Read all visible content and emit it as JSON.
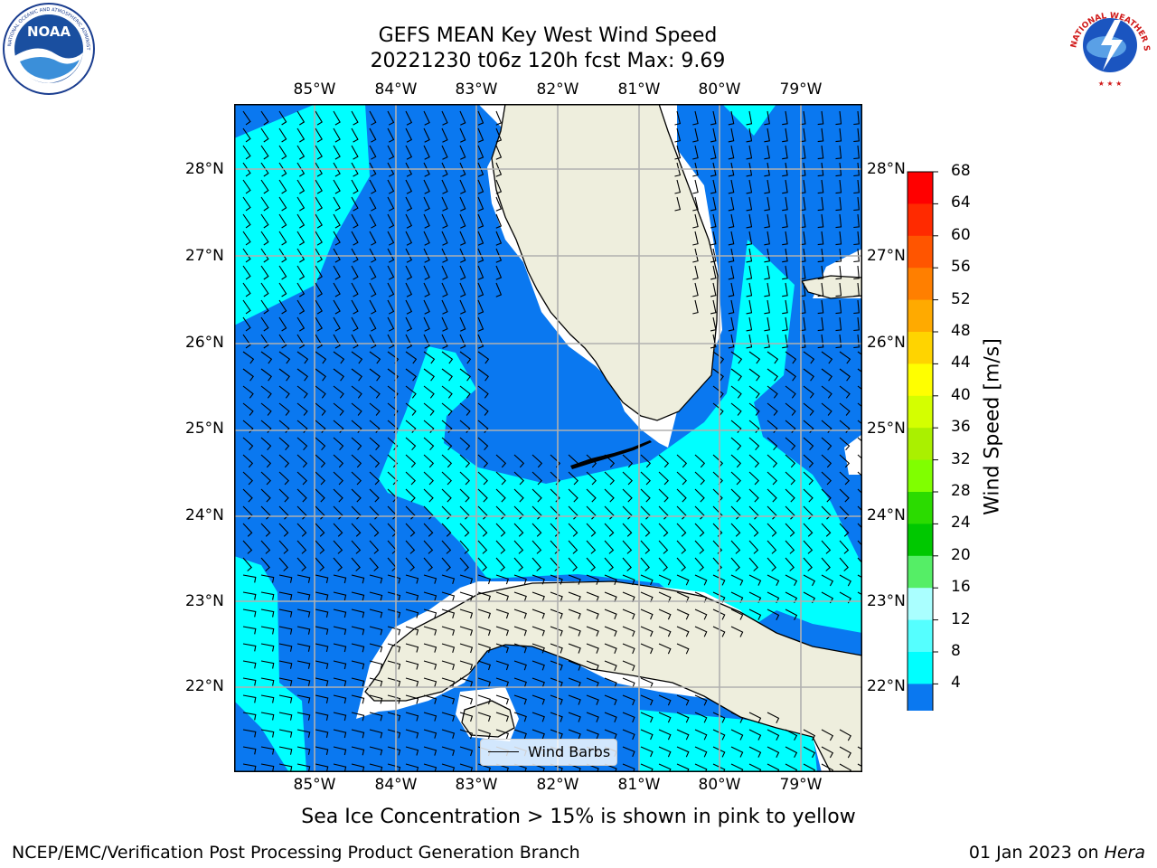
{
  "header": {
    "title_line1": "GEFS MEAN Key West Wind Speed",
    "title_line2": "20221230 t06z 120h fcst   Max: 9.69"
  },
  "logos": {
    "left": {
      "name": "noaa-logo",
      "text": "NOAA",
      "ring_text": "NATIONAL OCEANIC AND ATMOSPHERIC ADMINISTRATION · U.S. DEPARTMENT OF COMMERCE"
    },
    "right": {
      "name": "nws-logo",
      "ring_text": "NATIONAL WEATHER SERVICE"
    }
  },
  "map": {
    "lon_labels": [
      "85°W",
      "84°W",
      "83°W",
      "82°W",
      "81°W",
      "80°W",
      "79°W"
    ],
    "lat_labels": [
      "28°N",
      "27°N",
      "26°N",
      "25°N",
      "24°N",
      "23°N",
      "22°N"
    ],
    "colors": {
      "ocean_low": "#0a78f0",
      "ocean_mid": "#00ffff",
      "land": "#eeeedd",
      "grid": "#b0b0b0"
    },
    "legend_label": "Wind Barbs"
  },
  "colorbar": {
    "label": "Wind Speed [m/s]",
    "ticks": [
      "68",
      "64",
      "60",
      "56",
      "52",
      "48",
      "44",
      "40",
      "36",
      "32",
      "28",
      "24",
      "20",
      "16",
      "12",
      "8",
      "4"
    ],
    "colors": [
      "#ff0000",
      "#ff2a00",
      "#ff5500",
      "#ff7f00",
      "#ffaa00",
      "#ffd400",
      "#ffff00",
      "#d4ff00",
      "#aaf000",
      "#80ff00",
      "#2bdb00",
      "#00c800",
      "#55ee66",
      "#aaffff",
      "#55ffff",
      "#00ffff",
      "#0a78f0"
    ],
    "extend_color": "#0000e6"
  },
  "footer": {
    "sea_ice_note": "Sea Ice Concentration > 15% is shown in pink to yellow",
    "branch": "NCEP/EMC/Verification Post Processing Product Generation Branch",
    "date_prefix": "01 Jan 2023 on ",
    "machine": "Hera"
  }
}
